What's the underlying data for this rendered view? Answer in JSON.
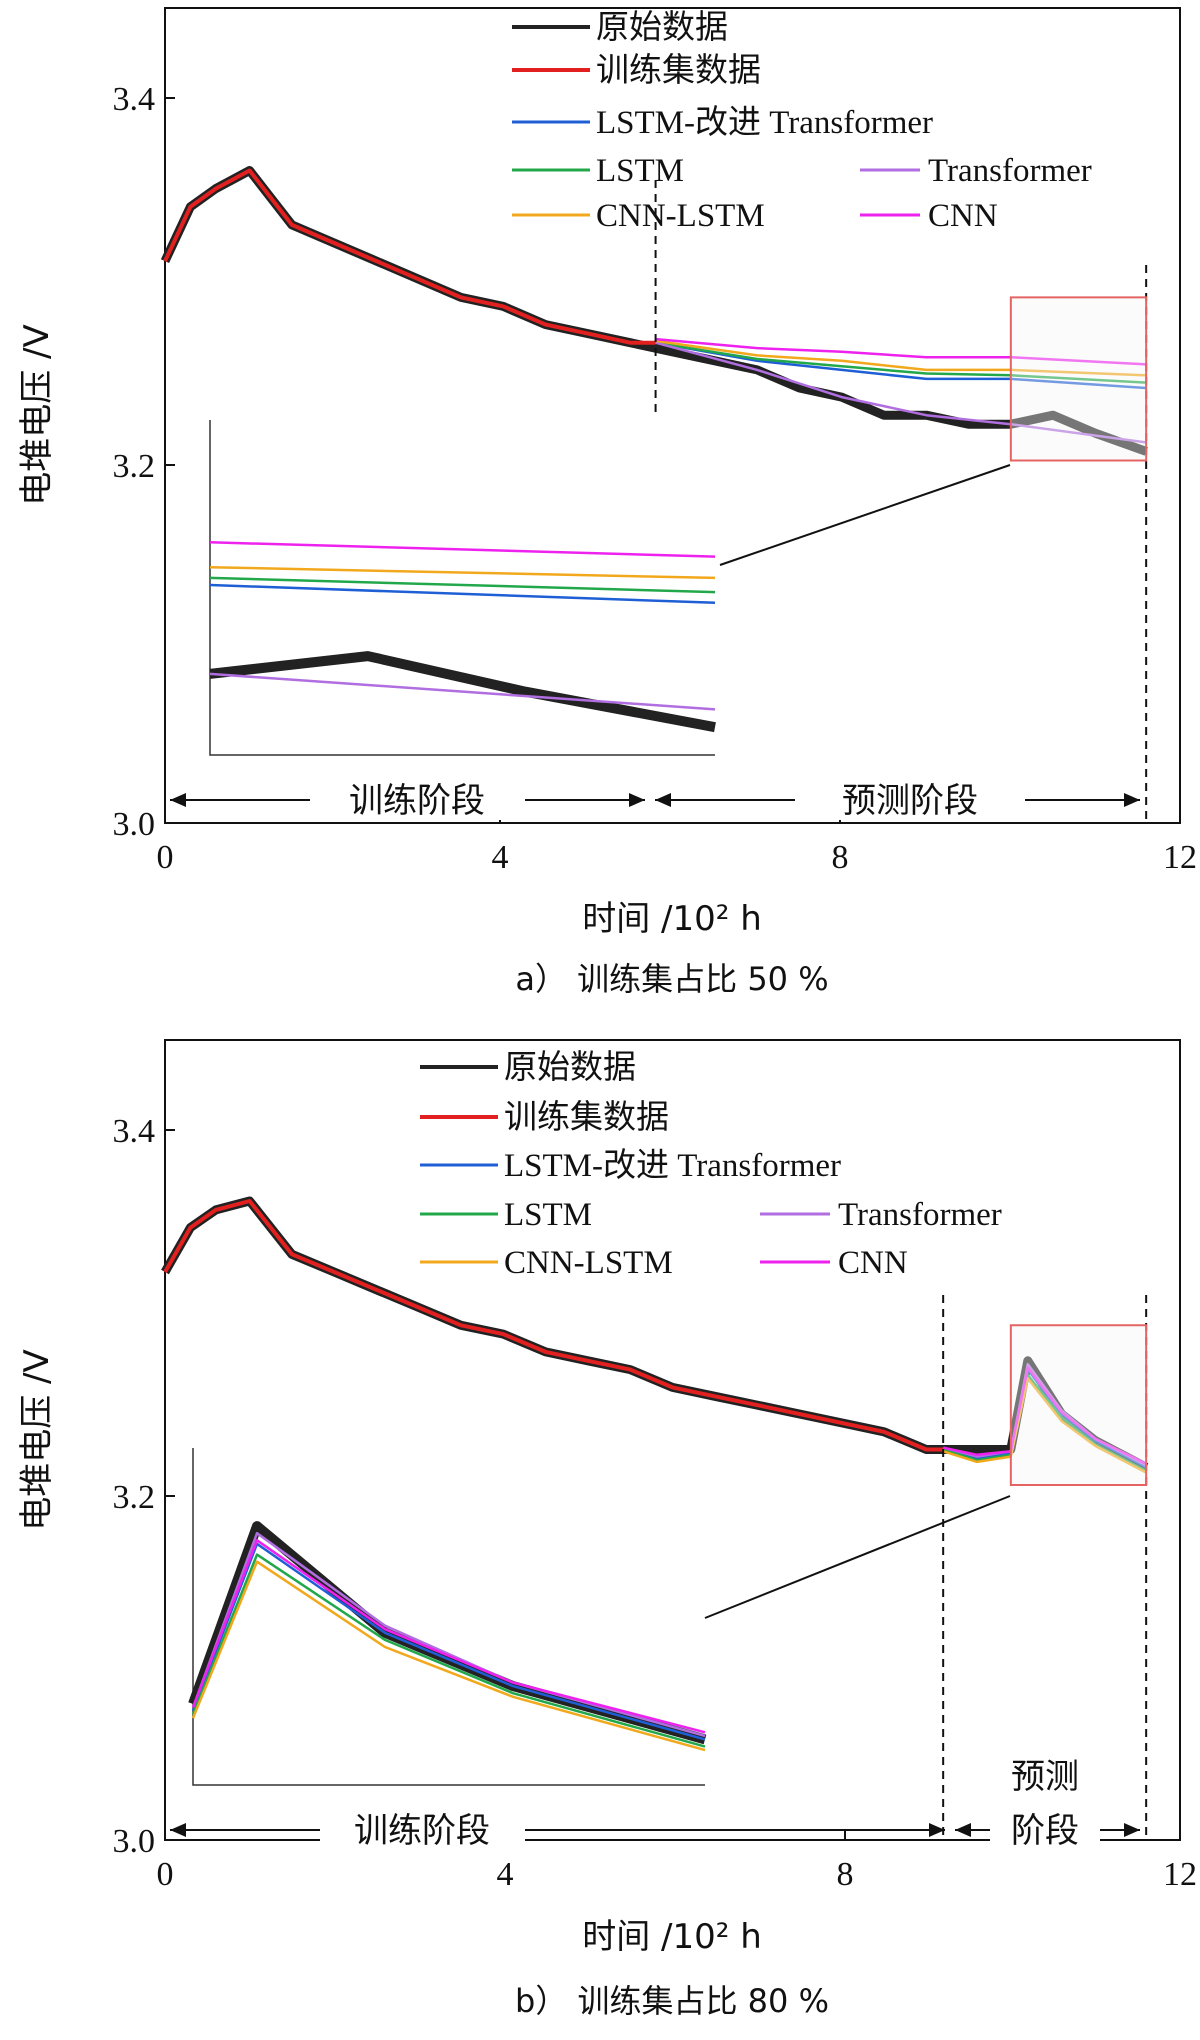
{
  "figure": {
    "x_axis_title": "时间 /10² h",
    "y_axis_title": "电堆电压 /V"
  },
  "legend_entries": [
    {
      "label": "原始数据",
      "color": "#222222"
    },
    {
      "label": "训练集数据",
      "color": "#e32020"
    },
    {
      "label": "LSTM-改进 Transformer",
      "color": "#1f5fd6"
    },
    {
      "label": "LSTM",
      "color": "#22a84a"
    },
    {
      "label": "Transformer",
      "color": "#b06ee0"
    },
    {
      "label": "CNN-LSTM",
      "color": "#f2a81c"
    },
    {
      "label": "CNN",
      "color": "#ee22ee"
    }
  ],
  "chart_data": [
    {
      "id": "a",
      "type": "line",
      "caption": "a） 训练集占比 50 %",
      "xlabel": "时间 /10² h",
      "ylabel": "电堆电压 /V",
      "xlim": [
        0,
        12
      ],
      "ylim": [
        3.0,
        3.45
      ],
      "xticks": [
        "0",
        "4",
        "8",
        "12"
      ],
      "yticks": [
        "3.0",
        "3.2",
        "3.4"
      ],
      "split_x": 5.8,
      "end_x": 11.6,
      "phase_labels": [
        "训练阶段",
        "预测阶段"
      ],
      "zoom_box": {
        "x0": 10.0,
        "x1": 11.6,
        "y0": 3.2,
        "y1": 3.29
      },
      "series": [
        {
          "name": "原始数据",
          "points": [
            [
              0,
              3.31
            ],
            [
              0.3,
              3.34
            ],
            [
              0.6,
              3.35
            ],
            [
              1.0,
              3.36
            ],
            [
              1.5,
              3.33
            ],
            [
              2.0,
              3.32
            ],
            [
              2.5,
              3.31
            ],
            [
              3.0,
              3.3
            ],
            [
              3.5,
              3.29
            ],
            [
              4.0,
              3.285
            ],
            [
              4.5,
              3.275
            ],
            [
              5.0,
              3.27
            ],
            [
              5.5,
              3.265
            ],
            [
              6.0,
              3.26
            ],
            [
              6.5,
              3.255
            ],
            [
              7.0,
              3.25
            ],
            [
              7.5,
              3.24
            ],
            [
              8.0,
              3.235
            ],
            [
              8.5,
              3.225
            ],
            [
              9.0,
              3.225
            ],
            [
              9.5,
              3.22
            ],
            [
              10.0,
              3.22
            ],
            [
              10.5,
              3.225
            ],
            [
              11.0,
              3.215
            ],
            [
              11.6,
              3.205
            ]
          ]
        },
        {
          "name": "训练集数据",
          "points": [
            [
              0,
              3.31
            ],
            [
              0.3,
              3.34
            ],
            [
              0.6,
              3.35
            ],
            [
              1.0,
              3.36
            ],
            [
              1.5,
              3.33
            ],
            [
              2.0,
              3.32
            ],
            [
              2.5,
              3.31
            ],
            [
              3.0,
              3.3
            ],
            [
              3.5,
              3.29
            ],
            [
              4.0,
              3.285
            ],
            [
              4.5,
              3.275
            ],
            [
              5.0,
              3.27
            ],
            [
              5.5,
              3.265
            ],
            [
              5.8,
              3.265
            ]
          ]
        },
        {
          "name": "LSTM-改进 Transformer",
          "points": [
            [
              5.8,
              3.265
            ],
            [
              7.0,
              3.255
            ],
            [
              8.0,
              3.25
            ],
            [
              9.0,
              3.245
            ],
            [
              10.0,
              3.245
            ],
            [
              11.6,
              3.24
            ]
          ]
        },
        {
          "name": "LSTM",
          "points": [
            [
              5.8,
              3.265
            ],
            [
              7.0,
              3.256
            ],
            [
              8.0,
              3.252
            ],
            [
              9.0,
              3.248
            ],
            [
              10.0,
              3.247
            ],
            [
              11.6,
              3.243
            ]
          ]
        },
        {
          "name": "Transformer",
          "points": [
            [
              5.8,
              3.265
            ],
            [
              7.0,
              3.25
            ],
            [
              8.0,
              3.235
            ],
            [
              9.0,
              3.225
            ],
            [
              10.0,
              3.22
            ],
            [
              11.6,
              3.21
            ]
          ]
        },
        {
          "name": "CNN-LSTM",
          "points": [
            [
              5.8,
              3.266
            ],
            [
              7.0,
              3.258
            ],
            [
              8.0,
              3.255
            ],
            [
              9.0,
              3.25
            ],
            [
              10.0,
              3.25
            ],
            [
              11.6,
              3.247
            ]
          ]
        },
        {
          "name": "CNN",
          "points": [
            [
              5.8,
              3.267
            ],
            [
              7.0,
              3.262
            ],
            [
              8.0,
              3.26
            ],
            [
              9.0,
              3.257
            ],
            [
              10.0,
              3.257
            ],
            [
              11.6,
              3.253
            ]
          ]
        }
      ]
    },
    {
      "id": "b",
      "type": "line",
      "caption": "b） 训练集占比 80 %",
      "xlabel": "时间 /10² h",
      "ylabel": "电堆电压 /V",
      "xlim": [
        0,
        12
      ],
      "ylim": [
        3.0,
        3.45
      ],
      "xticks": [
        "0",
        "4",
        "8",
        "12"
      ],
      "yticks": [
        "3.0",
        "3.2",
        "3.4"
      ],
      "split_x": 9.2,
      "end_x": 11.6,
      "phase_labels": [
        "训练阶段",
        "预测",
        "阶段"
      ],
      "zoom_box": {
        "x0": 10.0,
        "x1": 11.6,
        "y0": 3.2,
        "y1": 3.29
      },
      "series": [
        {
          "name": "原始数据",
          "points": [
            [
              0,
              3.32
            ],
            [
              0.3,
              3.345
            ],
            [
              0.6,
              3.355
            ],
            [
              1.0,
              3.36
            ],
            [
              1.5,
              3.33
            ],
            [
              2.0,
              3.32
            ],
            [
              2.5,
              3.31
            ],
            [
              3.0,
              3.3
            ],
            [
              3.5,
              3.29
            ],
            [
              4.0,
              3.285
            ],
            [
              4.5,
              3.275
            ],
            [
              5.0,
              3.27
            ],
            [
              5.5,
              3.265
            ],
            [
              6.0,
              3.255
            ],
            [
              6.5,
              3.25
            ],
            [
              7.0,
              3.245
            ],
            [
              7.5,
              3.24
            ],
            [
              8.0,
              3.235
            ],
            [
              8.5,
              3.23
            ],
            [
              9.0,
              3.22
            ],
            [
              9.5,
              3.22
            ],
            [
              10.0,
              3.22
            ],
            [
              10.2,
              3.27
            ],
            [
              10.6,
              3.24
            ],
            [
              11.0,
              3.225
            ],
            [
              11.6,
              3.21
            ]
          ]
        },
        {
          "name": "训练集数据",
          "points": [
            [
              0,
              3.32
            ],
            [
              0.3,
              3.345
            ],
            [
              0.6,
              3.355
            ],
            [
              1.0,
              3.36
            ],
            [
              1.5,
              3.33
            ],
            [
              2.0,
              3.32
            ],
            [
              2.5,
              3.31
            ],
            [
              3.0,
              3.3
            ],
            [
              3.5,
              3.29
            ],
            [
              4.0,
              3.285
            ],
            [
              4.5,
              3.275
            ],
            [
              5.0,
              3.27
            ],
            [
              5.5,
              3.265
            ],
            [
              6.0,
              3.255
            ],
            [
              6.5,
              3.25
            ],
            [
              7.0,
              3.245
            ],
            [
              7.5,
              3.24
            ],
            [
              8.0,
              3.235
            ],
            [
              8.5,
              3.23
            ],
            [
              9.0,
              3.22
            ],
            [
              9.2,
              3.22
            ]
          ]
        },
        {
          "name": "LSTM-改进 Transformer",
          "points": [
            [
              9.2,
              3.22
            ],
            [
              9.6,
              3.215
            ],
            [
              10.0,
              3.218
            ],
            [
              10.2,
              3.265
            ],
            [
              10.6,
              3.24
            ],
            [
              11.0,
              3.225
            ],
            [
              11.6,
              3.21
            ]
          ]
        },
        {
          "name": "LSTM",
          "points": [
            [
              9.2,
              3.22
            ],
            [
              9.6,
              3.214
            ],
            [
              10.0,
              3.217
            ],
            [
              10.2,
              3.262
            ],
            [
              10.6,
              3.238
            ],
            [
              11.0,
              3.223
            ],
            [
              11.6,
              3.208
            ]
          ]
        },
        {
          "name": "Transformer",
          "points": [
            [
              9.2,
              3.221
            ],
            [
              9.6,
              3.216
            ],
            [
              10.0,
              3.219
            ],
            [
              10.2,
              3.268
            ],
            [
              10.6,
              3.242
            ],
            [
              11.0,
              3.226
            ],
            [
              11.6,
              3.211
            ]
          ]
        },
        {
          "name": "CNN-LSTM",
          "points": [
            [
              9.2,
              3.219
            ],
            [
              9.6,
              3.213
            ],
            [
              10.0,
              3.216
            ],
            [
              10.2,
              3.26
            ],
            [
              10.6,
              3.236
            ],
            [
              11.0,
              3.222
            ],
            [
              11.6,
              3.207
            ]
          ]
        },
        {
          "name": "CNN",
          "points": [
            [
              9.2,
              3.221
            ],
            [
              9.6,
              3.217
            ],
            [
              10.0,
              3.219
            ],
            [
              10.2,
              3.266
            ],
            [
              10.6,
              3.241
            ],
            [
              11.0,
              3.226
            ],
            [
              11.6,
              3.212
            ]
          ]
        }
      ]
    }
  ]
}
